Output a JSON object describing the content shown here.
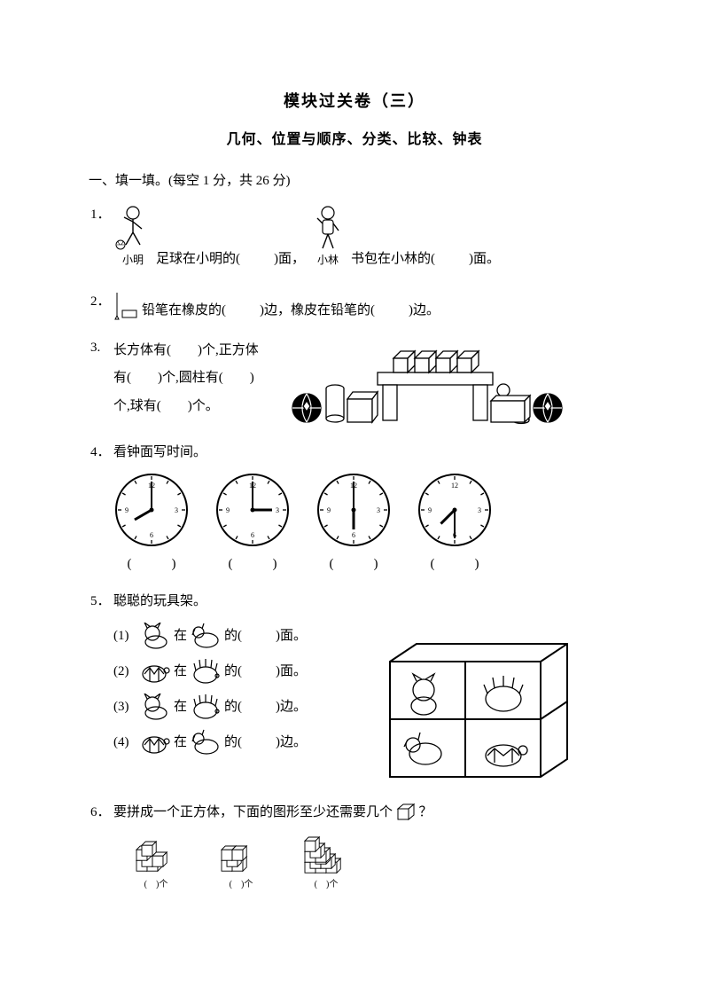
{
  "title": "模块过关卷（三）",
  "subtitle": "几何、位置与顺序、分类、比较、钟表",
  "section1_head": "一、填一填。(每空 1 分，共 26 分)",
  "q1": {
    "num": "1．",
    "label_ming": "小明",
    "text_a": "足球在小明的(",
    "blank": "　　",
    "text_b": ")面，",
    "label_lin": "小林",
    "text_c": "书包在小林的(",
    "text_d": ")面。"
  },
  "q2": {
    "num": "2．",
    "text_a": "铅笔在橡皮的(",
    "blank": "　　",
    "text_b": ")边，橡皮在铅笔的(",
    "text_c": ")边。"
  },
  "q3": {
    "num": "3.",
    "line1a": "长方体有(",
    "blank": "　　",
    "line1b": ")个,正方体",
    "line2a": "有(",
    "line2b": ")个,圆柱有(",
    "line2c": ")",
    "line3a": "个,球有(",
    "line3b": ")个。"
  },
  "q4": {
    "num": "4．",
    "title": "看钟面写时间。",
    "clocks": [
      {
        "hour": 8,
        "minute": 0,
        "label_l": "(",
        "label_m": "　　　",
        "label_r": ")"
      },
      {
        "hour": 3,
        "minute": 0,
        "label_l": "(",
        "label_m": "　　　",
        "label_r": ")"
      },
      {
        "hour": 6,
        "minute": 0,
        "label_l": "(",
        "label_m": "　　　",
        "label_r": ")"
      },
      {
        "hour": 7,
        "minute": 30,
        "label_l": "(",
        "label_m": "　　　",
        "label_r": ")"
      }
    ]
  },
  "q5": {
    "num": "5．",
    "title": "聪聪的玩具架。",
    "subs": [
      {
        "n": "(1)",
        "t1": "在",
        "t2": "的(",
        "blank": "　　",
        "t3": ")面。",
        "iconA": "cat",
        "iconB": "dog"
      },
      {
        "n": "(2)",
        "t1": "在",
        "t2": "的(",
        "blank": "　　",
        "t3": ")面。",
        "iconA": "turtle",
        "iconB": "hedgehog"
      },
      {
        "n": "(3)",
        "t1": "在",
        "t2": "的(",
        "blank": "　　",
        "t3": ")边。",
        "iconA": "cat",
        "iconB": "hedgehog"
      },
      {
        "n": "(4)",
        "t1": "在",
        "t2": "的(",
        "blank": "　　",
        "t3": ")边。",
        "iconA": "turtle",
        "iconB": "dog"
      }
    ]
  },
  "q6": {
    "num": "6．",
    "text_a": "要拼成一个正方体，下面的图形至少还需要几个",
    "text_b": "？",
    "stacks": [
      {
        "label_l": "(",
        "label_m": "　",
        "label_r": ")个"
      },
      {
        "label_l": "(",
        "label_m": "　",
        "label_r": ")个"
      },
      {
        "label_l": "(",
        "label_m": "　",
        "label_r": ")个"
      }
    ]
  },
  "colors": {
    "stroke": "#000000",
    "fill": "#ffffff",
    "grey": "#808080"
  }
}
